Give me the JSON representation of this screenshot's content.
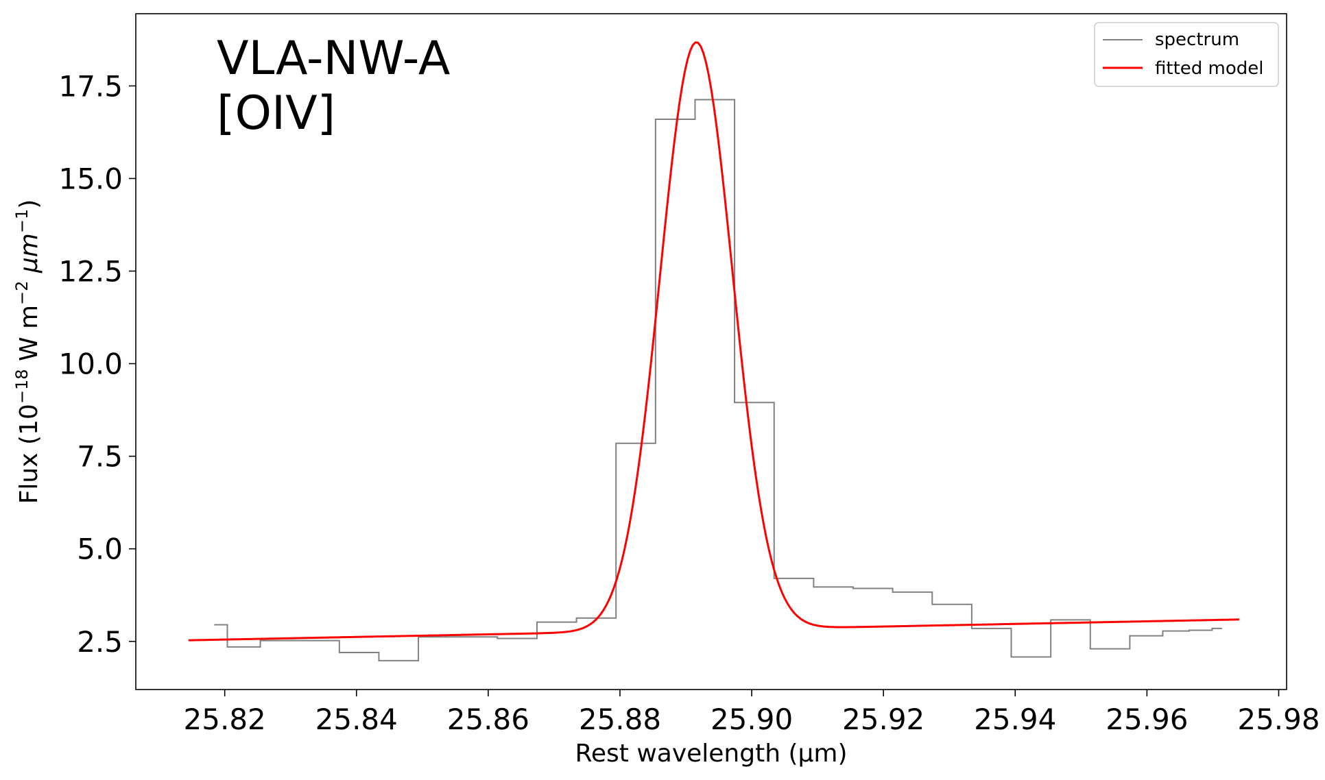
{
  "chart_data": {
    "type": "line",
    "annotation_lines": [
      "VLA-NW-A",
      "[OIV]"
    ],
    "xlabel": "Rest wavelength (μm)",
    "ylabel_parts": {
      "prefix": "Flux (10",
      "exp1": "−18",
      "mid": " W m",
      "exp2": "−2",
      "unit": " μm",
      "exp3": "−1",
      "suffix": ")"
    },
    "xlim": [
      25.8065,
      25.9812
    ],
    "ylim": [
      1.2,
      19.45
    ],
    "xticks": [
      25.82,
      25.84,
      25.86,
      25.88,
      25.9,
      25.92,
      25.94,
      25.96,
      25.98
    ],
    "xtick_labels": [
      "25.82",
      "25.84",
      "25.86",
      "25.88",
      "25.90",
      "25.92",
      "25.94",
      "25.96",
      "25.98"
    ],
    "yticks": [
      2.5,
      5.0,
      7.5,
      10.0,
      12.5,
      15.0,
      17.5
    ],
    "ytick_labels": [
      "2.5",
      "5.0",
      "7.5",
      "10.0",
      "12.5",
      "15.0",
      "17.5"
    ],
    "grid": false,
    "legend_position": "top-right",
    "series": [
      {
        "name": "spectrum",
        "style": "steps-mid",
        "color": "#808080",
        "x": [
          25.8184,
          25.8224,
          25.8284,
          25.8344,
          25.8404,
          25.8464,
          25.8524,
          25.8584,
          25.8644,
          25.8704,
          25.8764,
          25.8824,
          25.8884,
          25.8944,
          25.9004,
          25.9064,
          25.9124,
          25.9184,
          25.9244,
          25.9304,
          25.9364,
          25.9424,
          25.9484,
          25.9544,
          25.9604,
          25.9644,
          25.9684,
          25.9714
        ],
        "y": [
          2.95,
          2.35,
          2.52,
          2.52,
          2.2,
          1.98,
          2.62,
          2.62,
          2.58,
          3.02,
          3.13,
          7.85,
          16.6,
          17.13,
          8.95,
          4.2,
          3.97,
          3.93,
          3.83,
          3.5,
          2.85,
          2.08,
          3.08,
          2.3,
          2.65,
          2.78,
          2.8,
          2.85
        ]
      },
      {
        "name": "fitted model",
        "style": "line",
        "color": "#ff0000",
        "model": {
          "kind": "gaussian_plus_linear",
          "amplitude": 15.88,
          "center": 25.8916,
          "sigma": 0.0055,
          "continuum": {
            "x0": 25.8145,
            "y0": 2.53,
            "slope": 3.52
          },
          "x_range": [
            25.8145,
            25.974
          ]
        }
      }
    ]
  }
}
